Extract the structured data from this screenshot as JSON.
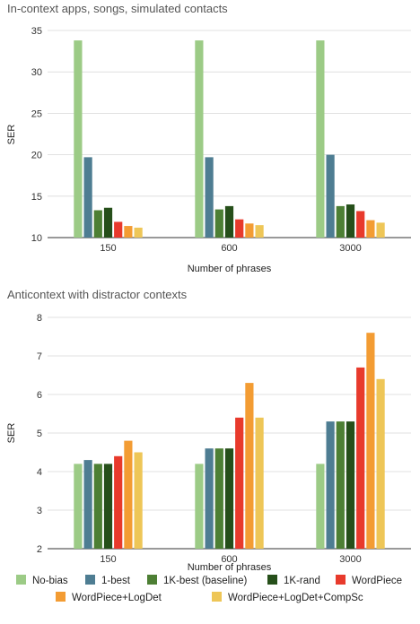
{
  "series_colors": [
    "#9ccb86",
    "#4e7d92",
    "#4d7f34",
    "#264f1a",
    "#e83a2c",
    "#f39c33",
    "#eec657"
  ],
  "legend": [
    {
      "name": "No-bias"
    },
    {
      "name": "1-best"
    },
    {
      "name": "1K-best (baseline)"
    },
    {
      "name": "1K-rand"
    },
    {
      "name": "WordPiece"
    },
    {
      "name": "WordPiece+LogDet"
    },
    {
      "name": "WordPiece+LogDet+CompSc"
    }
  ],
  "chart_data": [
    {
      "type": "bar",
      "title": "In-context apps, songs, simulated contacts",
      "xlabel": "Number of phrases",
      "ylabel": "SER",
      "categories": [
        "150",
        "600",
        "3000"
      ],
      "ylim": [
        10,
        35
      ],
      "yticks": [
        10,
        15,
        20,
        25,
        30,
        35
      ],
      "grid": true,
      "series": [
        {
          "name": "No-bias",
          "values": [
            33.8,
            33.8,
            33.8
          ]
        },
        {
          "name": "1-best",
          "values": [
            19.7,
            19.7,
            20.0
          ]
        },
        {
          "name": "1K-best (baseline)",
          "values": [
            13.3,
            13.4,
            13.8
          ]
        },
        {
          "name": "1K-rand",
          "values": [
            13.6,
            13.8,
            14.0
          ]
        },
        {
          "name": "WordPiece",
          "values": [
            11.9,
            12.2,
            13.2
          ]
        },
        {
          "name": "WordPiece+LogDet",
          "values": [
            11.4,
            11.7,
            12.1
          ]
        },
        {
          "name": "WordPiece+LogDet+CompSc",
          "values": [
            11.2,
            11.5,
            11.8
          ]
        }
      ]
    },
    {
      "type": "bar",
      "title": "Anticontext with distractor contexts",
      "xlabel": "Number of phrases",
      "ylabel": "SER",
      "categories": [
        "150",
        "600",
        "3000"
      ],
      "ylim": [
        2,
        8
      ],
      "yticks": [
        2,
        3,
        4,
        5,
        6,
        7,
        8
      ],
      "grid": true,
      "series": [
        {
          "name": "No-bias",
          "values": [
            4.2,
            4.2,
            4.2
          ]
        },
        {
          "name": "1-best",
          "values": [
            4.3,
            4.6,
            5.3
          ]
        },
        {
          "name": "1K-best (baseline)",
          "values": [
            4.2,
            4.6,
            5.3
          ]
        },
        {
          "name": "1K-rand",
          "values": [
            4.2,
            4.6,
            5.3
          ]
        },
        {
          "name": "WordPiece",
          "values": [
            4.4,
            5.4,
            6.7
          ]
        },
        {
          "name": "WordPiece+LogDet",
          "values": [
            4.8,
            6.3,
            7.6
          ]
        },
        {
          "name": "WordPiece+LogDet+CompSc",
          "values": [
            4.5,
            5.4,
            6.4
          ]
        }
      ]
    }
  ]
}
